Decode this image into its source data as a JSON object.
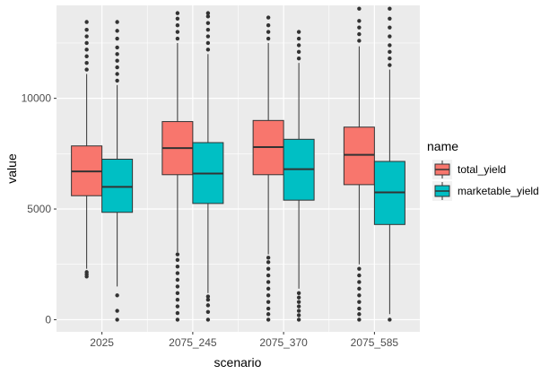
{
  "chart_data": {
    "type": "boxplot",
    "xlabel": "scenario",
    "ylabel": "value",
    "ylim": [
      -550,
      14200
    ],
    "yticks": [
      0,
      5000,
      10000
    ],
    "grid": true,
    "legend": {
      "title": "name",
      "placement": "right"
    },
    "categories": [
      "2025",
      "2075_245",
      "2075_370",
      "2075_585"
    ],
    "series": [
      {
        "name": "total_yield",
        "color": "#F8766D",
        "boxes": [
          {
            "whisker_low": 2300,
            "q1": 5600,
            "median": 6700,
            "q3": 7850,
            "whisker_high": 11100,
            "outliers": [
              1950,
              2050,
              2150,
              11300,
              11600,
              11900,
              12200,
              12500,
              12800,
              13100,
              13450
            ]
          },
          {
            "whisker_low": 3050,
            "q1": 6550,
            "median": 7750,
            "q3": 8950,
            "whisker_high": 12500,
            "outliers": [
              0,
              300,
              600,
              900,
              1200,
              1500,
              1800,
              2100,
              2400,
              2700,
              2950,
              12700,
              13000,
              13300,
              13600,
              13850
            ]
          },
          {
            "whisker_low": 2950,
            "q1": 6550,
            "median": 7800,
            "q3": 9000,
            "whisker_high": 12500,
            "outliers": [
              0,
              250,
              500,
              800,
              1100,
              1400,
              1700,
              2000,
              2300,
              2600,
              2800,
              12700,
              13000,
              13300,
              13650
            ]
          },
          {
            "whisker_low": 2500,
            "q1": 6100,
            "median": 7450,
            "q3": 8700,
            "whisker_high": 12350,
            "outliers": [
              0,
              250,
              500,
              800,
              1100,
              1400,
              1700,
              2000,
              2300,
              12600,
              12900,
              13200,
              13500,
              14050
            ]
          }
        ]
      },
      {
        "name": "marketable_yield",
        "color": "#00BFC4",
        "boxes": [
          {
            "whisker_low": 1500,
            "q1": 4850,
            "median": 6000,
            "q3": 7250,
            "whisker_high": 10600,
            "outliers": [
              0,
              400,
              1100,
              10800,
              11100,
              11400,
              11700,
              12000,
              12300,
              12700,
              13050,
              13450
            ]
          },
          {
            "whisker_low": 1200,
            "q1": 5250,
            "median": 6600,
            "q3": 8000,
            "whisker_high": 12000,
            "outliers": [
              0,
              350,
              650,
              900,
              1050,
              12200,
              12500,
              12800,
              13100,
              13400,
              13700,
              13850
            ]
          },
          {
            "whisker_low": 1400,
            "q1": 5400,
            "median": 6800,
            "q3": 8150,
            "whisker_high": 11600,
            "outliers": [
              0,
              200,
              400,
              600,
              800,
              1000,
              1200,
              11800,
              12100,
              12400,
              12700,
              13000
            ]
          },
          {
            "whisker_low": 250,
            "q1": 4300,
            "median": 5750,
            "q3": 7150,
            "whisker_high": 11300,
            "outliers": [
              0,
              11500,
              11800,
              12100,
              12400,
              12800,
              13200,
              13600,
              14050
            ]
          }
        ]
      }
    ]
  }
}
